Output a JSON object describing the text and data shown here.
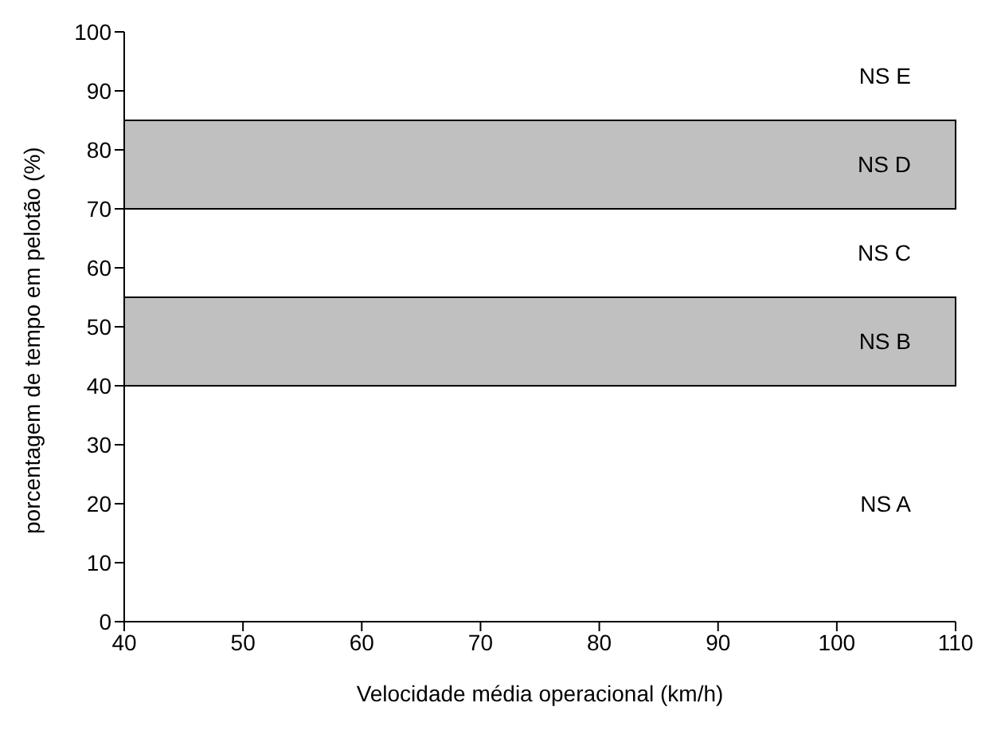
{
  "chart_data": {
    "type": "line",
    "xlabel": "Velocidade média operacional (km/h)",
    "ylabel": "porcentagem de tempo em pelotão (%)",
    "xlim": [
      40,
      110
    ],
    "xticks": [
      40,
      50,
      60,
      70,
      80,
      90,
      100,
      110
    ],
    "ylim": [
      0,
      100
    ],
    "yticks": [
      0,
      10,
      20,
      30,
      40,
      50,
      60,
      70,
      80,
      90,
      100
    ],
    "bands": [
      {
        "axis": "y",
        "from": 40,
        "to": 55,
        "label": "NS B",
        "color": "#c0c0c0"
      },
      {
        "axis": "y",
        "from": 70,
        "to": 85,
        "label": "NS D",
        "color": "#c0c0c0"
      }
    ],
    "annotations": [
      "NS A",
      "NS C",
      "NS E"
    ]
  }
}
